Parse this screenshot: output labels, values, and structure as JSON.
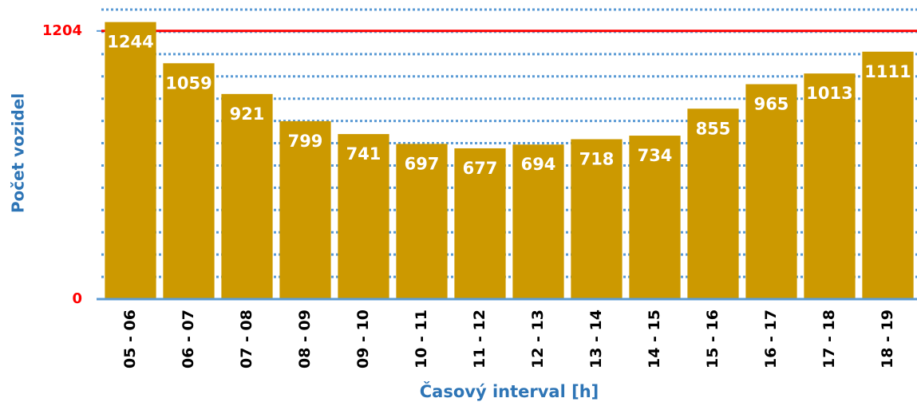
{
  "chart_data": {
    "type": "bar",
    "categories": [
      "05 - 06",
      "06 - 07",
      "07 - 08",
      "08 - 09",
      "09 - 10",
      "10 - 11",
      "11 - 12",
      "12 - 13",
      "13 - 14",
      "14 - 15",
      "15 - 16",
      "16 - 17",
      "17 - 18",
      "18 - 19"
    ],
    "values": [
      1244,
      1059,
      921,
      799,
      741,
      697,
      677,
      694,
      718,
      734,
      855,
      965,
      1013,
      1111
    ],
    "color": "#cc9900",
    "x_label": "Časový interval [h]",
    "y_label": "Počet vozidel",
    "ylim": [
      0,
      1300
    ],
    "yticks": [
      0,
      1204
    ],
    "grid_lines": [
      100,
      200,
      300,
      400,
      500,
      600,
      700,
      800,
      900,
      1000,
      1100,
      1200,
      1300
    ],
    "grid": true,
    "reference_line": {
      "value": 1204,
      "color": "#ff0000"
    }
  }
}
